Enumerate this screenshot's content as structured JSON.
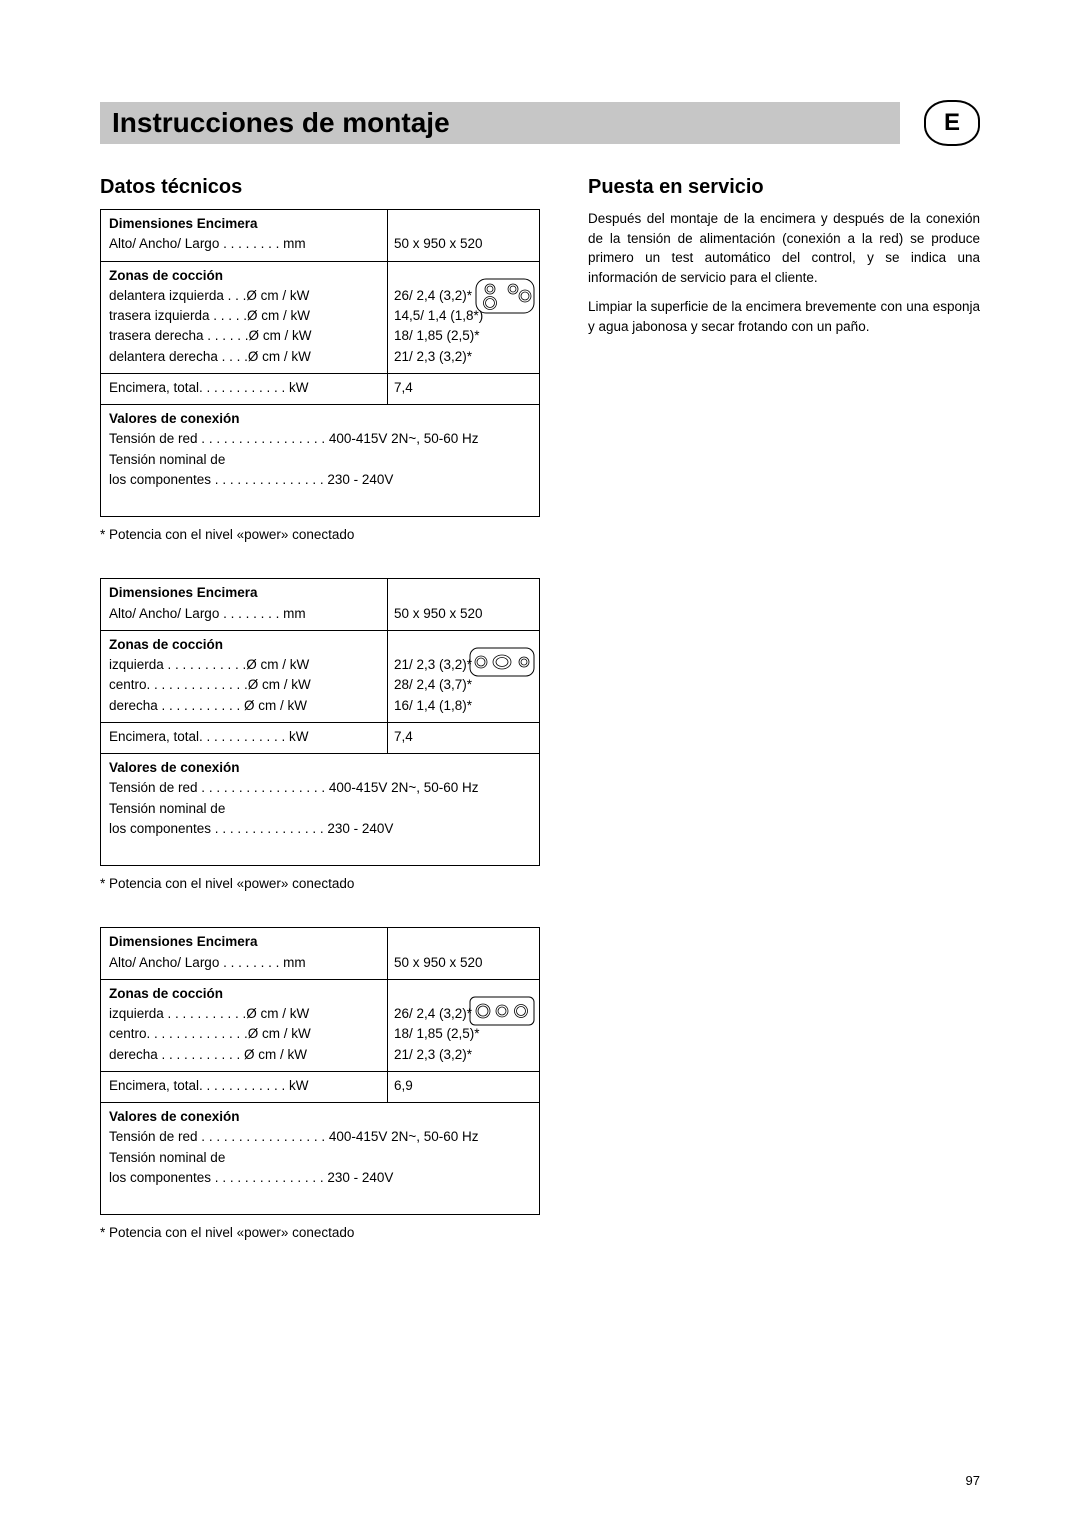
{
  "header": {
    "title": "Instrucciones de montaje",
    "langBadge": "E"
  },
  "leftTitle": "Datos técnicos",
  "rightTitle": "Puesta en servicio",
  "paragraphs": [
    "Después del montaje de la encimera y después de la conexión de la tensión de alimentación (conexión a la red) se produce primero un test automático del control, y se indica una información de servicio para el cliente.",
    "Limpiar la superficie de la encimera brevemente con una esponja y agua jabonosa y secar frotando con un paño."
  ],
  "footnote": "* Potencia con el nivel «power» conectado",
  "pageNumber": "97",
  "tables": [
    {
      "iconType": "four",
      "dimLabel": "Dimensiones Encimera",
      "dimRow": "Alto/ Ancho/ Largo . . . . . . . .  mm",
      "dimVal": "50 x 950 x 520",
      "zonesLabel": "Zonas de cocción",
      "zoneLines": [
        "delantera izquierda  . . .Ø cm / kW",
        "trasera izquierda  . . . . .Ø cm / kW",
        "trasera derecha . . . . . .Ø cm / kW",
        "delantera derecha . . . .Ø cm / kW"
      ],
      "zoneVals": [
        "26/ 2,4 (3,2)*",
        "14,5/ 1,4 (1,8*)",
        "18/ 1,85 (2,5)*",
        "21/ 2,3 (3,2)*"
      ],
      "totalLine": "Encimera, total. . . . . . . . . . . .  kW",
      "totalVal": "7,4",
      "connLabel": "Valores de conexión",
      "connLines": [
        "Tensión de red . . . . . . . . . . . . . . . . . 400-415V 2N~, 50-60 Hz",
        "Tensión nominal de",
        "los componentes  . . . . . . . . . . . . . . . 230 - 240V"
      ]
    },
    {
      "iconType": "three-oval",
      "dimLabel": "Dimensiones Encimera",
      "dimRow": "Alto/ Ancho/ Largo . . . . . . . .  mm",
      "dimVal": "50 x 950 x 520",
      "zonesLabel": "Zonas de cocción",
      "zoneLines": [
        "izquierda  . . . . . . . . . . .Ø cm / kW",
        "centro. . . . . . . . . . . . . .Ø cm / kW",
        "derecha  . . . . . . . . . . .  Ø cm / kW"
      ],
      "zoneVals": [
        "21/ 2,3 (3,2)*",
        "28/ 2,4 (3,7)*",
        "16/ 1,4 (1,8)*"
      ],
      "totalLine": "Encimera, total. . . . . . . . . . . .  kW",
      "totalVal": "7,4",
      "connLabel": "Valores de conexión",
      "connLines": [
        "Tensión de red . . . . . . . . . . . . . . . . . 400-415V 2N~, 50-60 Hz",
        "Tensión nominal de",
        "los componentes  . . . . . . . . . . . . . . . 230 - 240V"
      ]
    },
    {
      "iconType": "three-round",
      "dimLabel": "Dimensiones Encimera",
      "dimRow": "Alto/ Ancho/ Largo . . . . . . . .  mm",
      "dimVal": "50 x 950 x 520",
      "zonesLabel": "Zonas de cocción",
      "zoneLines": [
        "izquierda  . . . . . . . . . . .Ø cm / kW",
        "centro. . . . . . . . . . . . . .Ø cm / kW",
        "derecha  . . . . . . . . . . .  Ø cm / kW"
      ],
      "zoneVals": [
        "26/ 2,4 (3,2)*",
        "18/ 1,85 (2,5)*",
        "21/ 2,3 (3,2)*"
      ],
      "totalLine": "Encimera, total. . . . . . . . . . . .  kW",
      "totalVal": "6,9",
      "connLabel": "Valores de conexión",
      "connLines": [
        "Tensión de red . . . . . . . . . . . . . . . . . 400-415V 2N~, 50-60 Hz",
        "Tensión nominal de",
        "los componentes  . . . . . . . . . . . . . . . 230 - 240V"
      ]
    }
  ]
}
